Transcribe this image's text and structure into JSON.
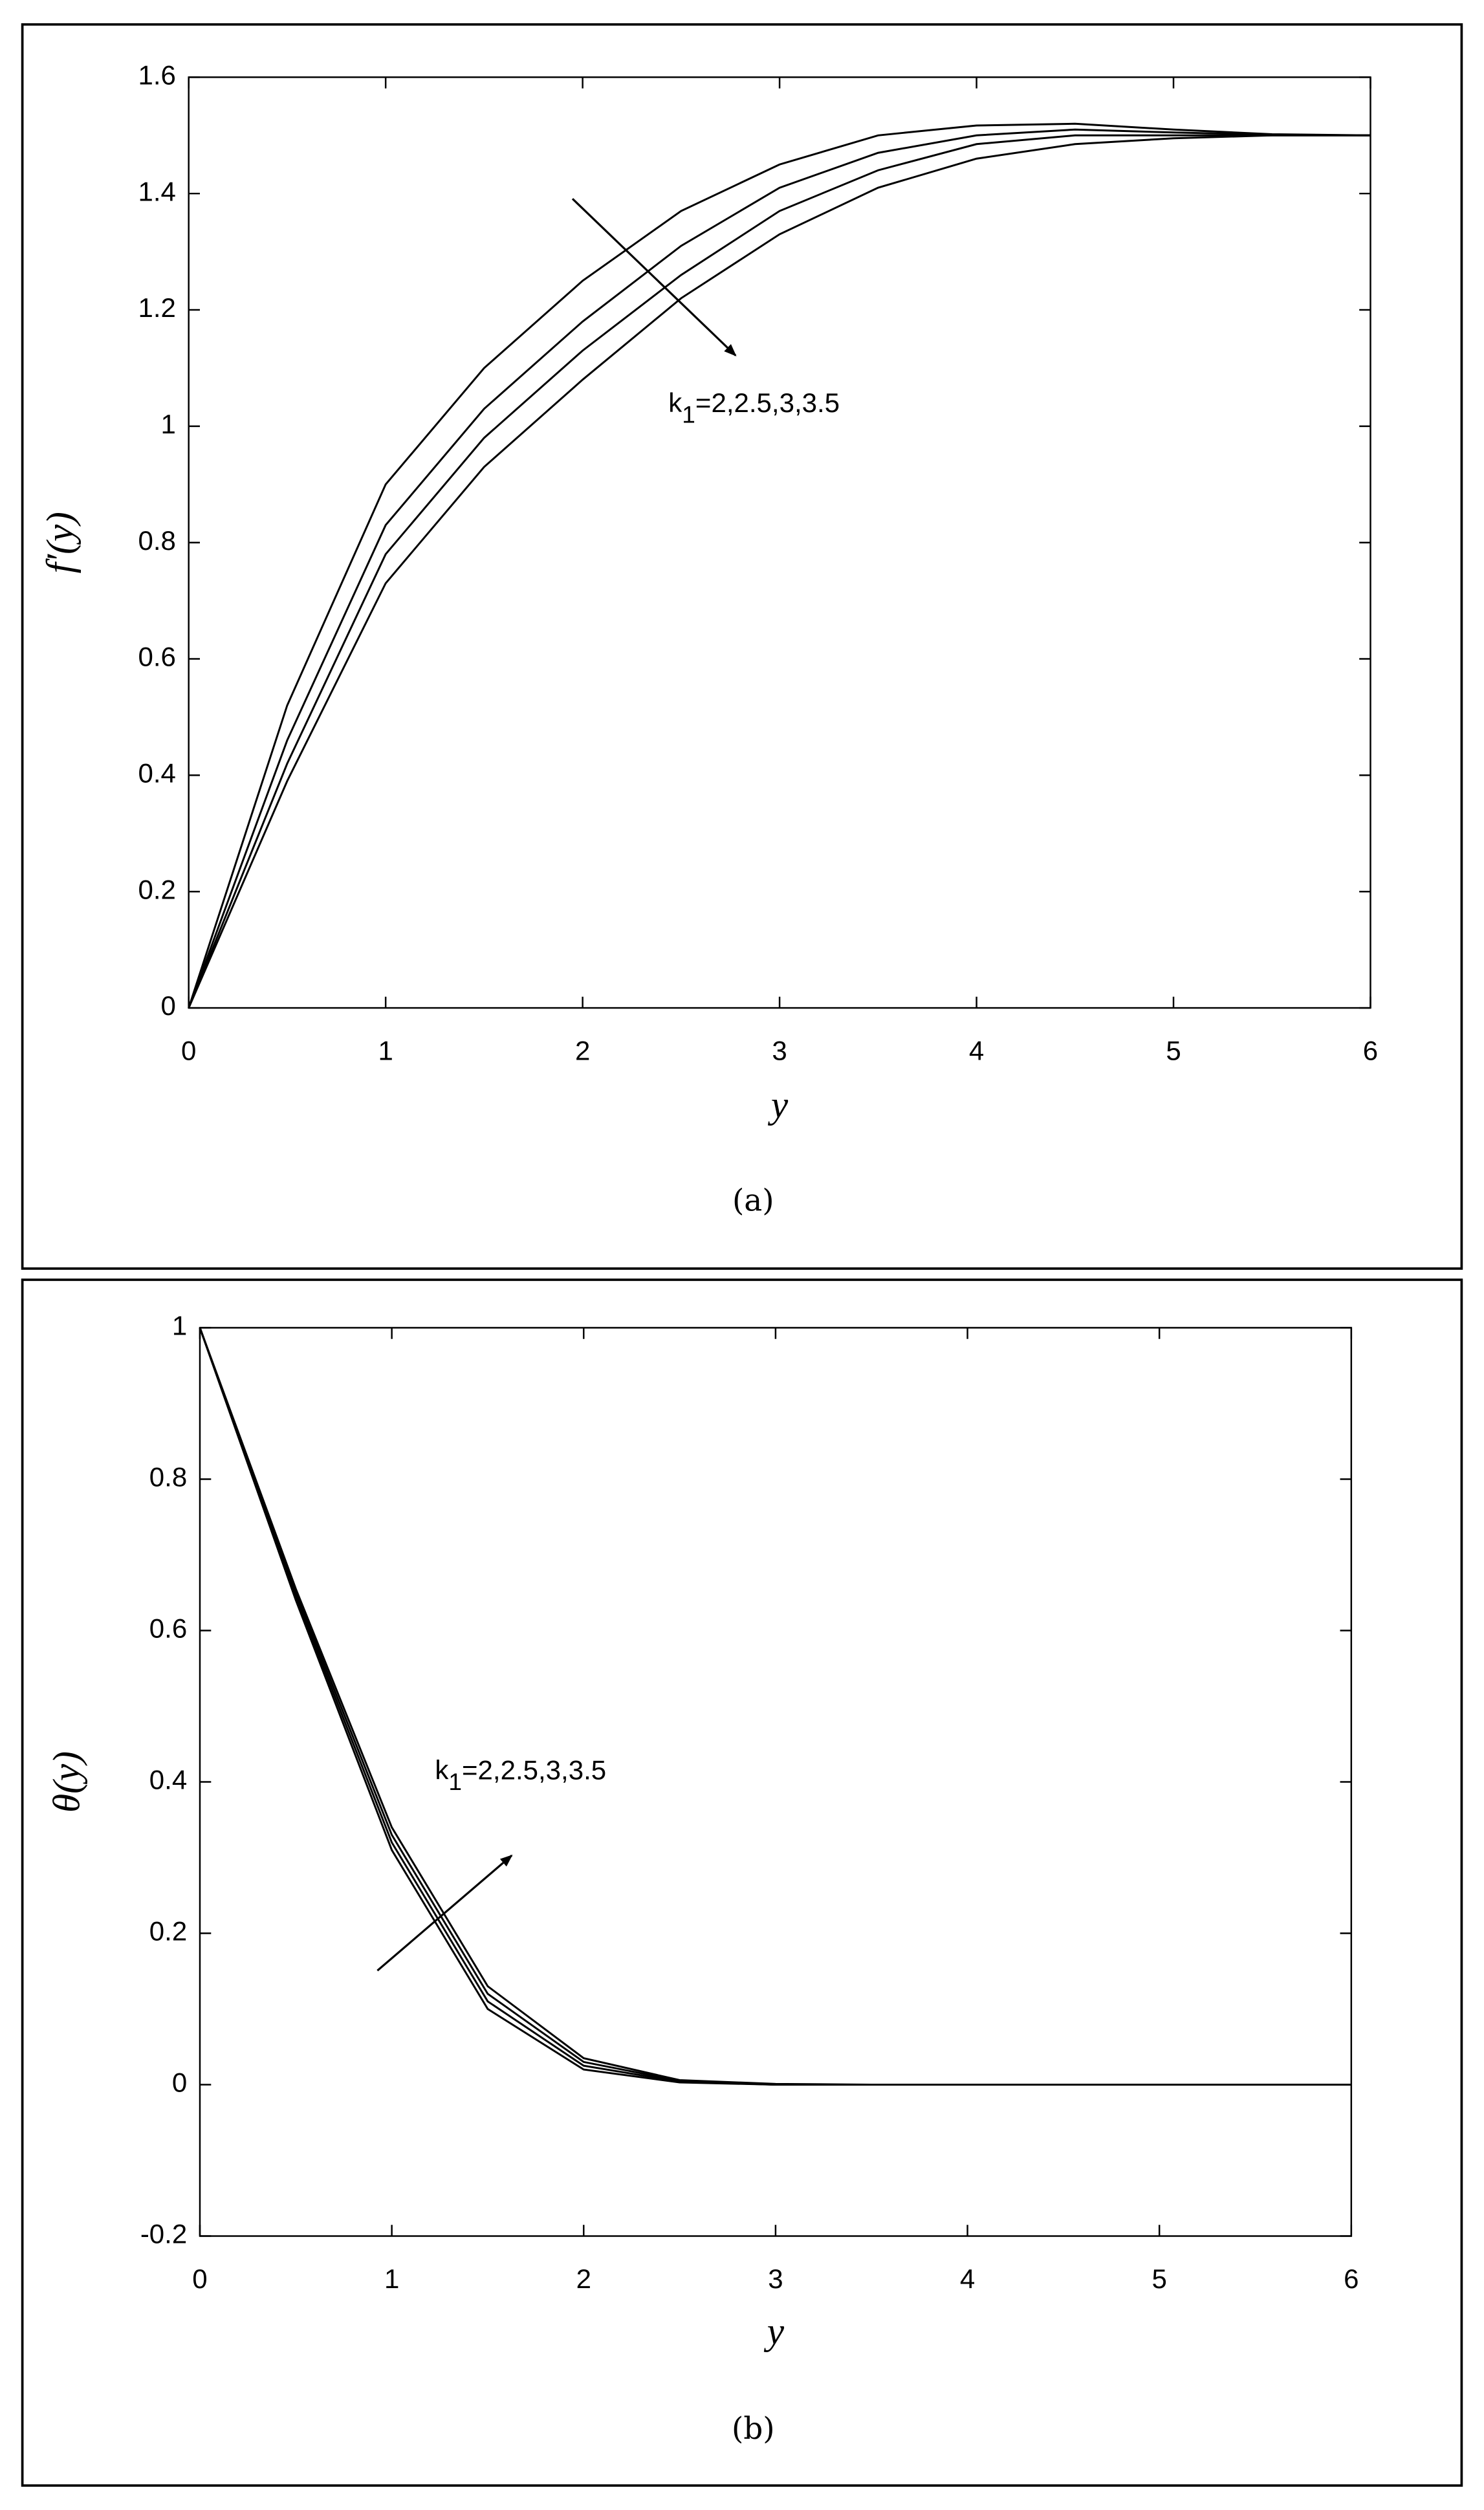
{
  "chart_data": [
    {
      "type": "line",
      "caption": "(a)",
      "xlabel": "y",
      "ylabel": "f′(y)",
      "annotation": {
        "base": "k",
        "sub": "1",
        "text": "=2,2.5,3,3.5"
      },
      "x": [
        0,
        0.5,
        1,
        1.5,
        2,
        2.5,
        3,
        3.5,
        4,
        4.5,
        5,
        5.5,
        6
      ],
      "xlim": [
        0,
        6
      ],
      "xticks": [
        0,
        1,
        2,
        3,
        4,
        5,
        6
      ],
      "ylim": [
        0,
        1.6
      ],
      "yticks": [
        0,
        0.2,
        0.4,
        0.6,
        0.8,
        1,
        1.2,
        1.4,
        1.6
      ],
      "series": [
        {
          "color": "#000000",
          "values": [
            0,
            0.52,
            0.9,
            1.1,
            1.25,
            1.37,
            1.45,
            1.5,
            1.517,
            1.52,
            1.51,
            1.502,
            1.5
          ]
        },
        {
          "color": "#000000",
          "values": [
            0,
            0.46,
            0.83,
            1.03,
            1.18,
            1.31,
            1.41,
            1.47,
            1.5,
            1.51,
            1.505,
            1.501,
            1.5
          ]
        },
        {
          "color": "#000000",
          "values": [
            0,
            0.42,
            0.78,
            0.98,
            1.13,
            1.26,
            1.37,
            1.44,
            1.485,
            1.5,
            1.5,
            1.5,
            1.5
          ]
        },
        {
          "color": "#000000",
          "values": [
            0,
            0.39,
            0.73,
            0.93,
            1.08,
            1.22,
            1.33,
            1.41,
            1.46,
            1.485,
            1.495,
            1.5,
            1.5
          ]
        }
      ]
    },
    {
      "type": "line",
      "caption": "(b)",
      "xlabel": "y",
      "ylabel": "θ(y)",
      "annotation": {
        "base": "k",
        "sub": "1",
        "text": "=2,2.5,3,3.5"
      },
      "x": [
        0,
        0.5,
        1,
        1.5,
        2,
        2.5,
        3,
        3.5,
        4,
        4.5,
        5,
        5.5,
        6
      ],
      "xlim": [
        0,
        6
      ],
      "xticks": [
        0,
        1,
        2,
        3,
        4,
        5,
        6
      ],
      "ylim": [
        -0.2,
        1
      ],
      "yticks": [
        -0.2,
        0,
        0.2,
        0.4,
        0.6,
        0.8,
        1
      ],
      "series": [
        {
          "color": "#000000",
          "values": [
            1,
            0.64,
            0.31,
            0.1,
            0.02,
            0.003,
            0,
            0,
            0,
            0,
            0,
            0,
            0
          ]
        },
        {
          "color": "#000000",
          "values": [
            1,
            0.645,
            0.32,
            0.11,
            0.025,
            0.004,
            0,
            0,
            0,
            0,
            0,
            0,
            0
          ]
        },
        {
          "color": "#000000",
          "values": [
            1,
            0.65,
            0.33,
            0.12,
            0.03,
            0.005,
            0,
            0,
            0,
            0,
            0,
            0,
            0
          ]
        },
        {
          "color": "#000000",
          "values": [
            1,
            0.655,
            0.34,
            0.13,
            0.035,
            0.006,
            0.001,
            0,
            0,
            0,
            0,
            0,
            0
          ]
        }
      ]
    }
  ]
}
